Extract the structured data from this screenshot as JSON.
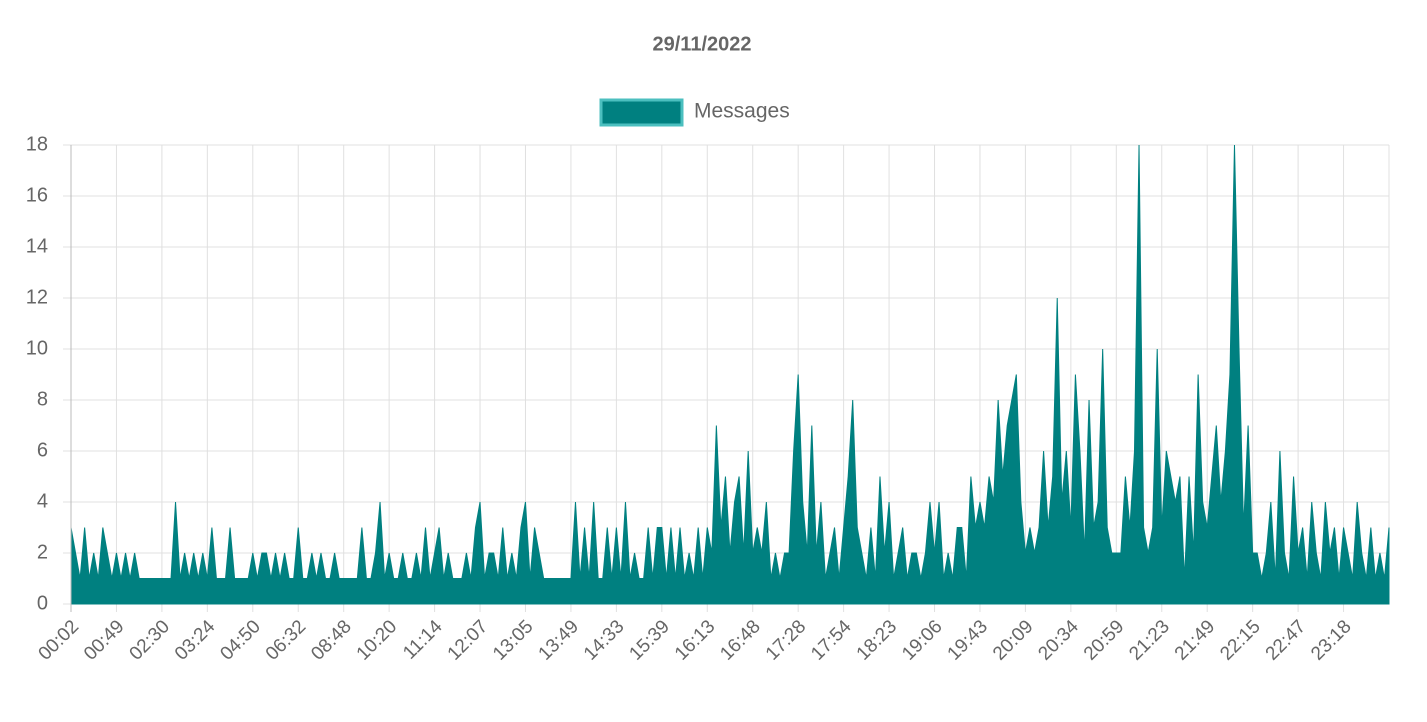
{
  "chart_data": {
    "type": "area",
    "title": "29/11/2022",
    "categories": [
      "00:02",
      null,
      null,
      null,
      null,
      null,
      null,
      null,
      null,
      null,
      "00:49",
      null,
      null,
      null,
      null,
      null,
      null,
      null,
      null,
      null,
      "02:30",
      null,
      null,
      null,
      null,
      null,
      null,
      null,
      null,
      null,
      "03:24",
      null,
      null,
      null,
      null,
      null,
      null,
      null,
      null,
      null,
      "04:50",
      null,
      null,
      null,
      null,
      null,
      null,
      null,
      null,
      null,
      "06:32",
      null,
      null,
      null,
      null,
      null,
      null,
      null,
      null,
      null,
      "08:48",
      null,
      null,
      null,
      null,
      null,
      null,
      null,
      null,
      null,
      "10:20",
      null,
      null,
      null,
      null,
      null,
      null,
      null,
      null,
      null,
      "11:14",
      null,
      null,
      null,
      null,
      null,
      null,
      null,
      null,
      null,
      "12:07",
      null,
      null,
      null,
      null,
      null,
      null,
      null,
      null,
      null,
      "13:05",
      null,
      null,
      null,
      null,
      null,
      null,
      null,
      null,
      null,
      "13:49",
      null,
      null,
      null,
      null,
      null,
      null,
      null,
      null,
      null,
      "14:33",
      null,
      null,
      null,
      null,
      null,
      null,
      null,
      null,
      null,
      "15:39",
      null,
      null,
      null,
      null,
      null,
      null,
      null,
      null,
      null,
      "16:13",
      null,
      null,
      null,
      null,
      null,
      null,
      null,
      null,
      null,
      "16:48",
      null,
      null,
      null,
      null,
      null,
      null,
      null,
      null,
      null,
      "17:28",
      null,
      null,
      null,
      null,
      null,
      null,
      null,
      null,
      null,
      "17:54",
      null,
      null,
      null,
      null,
      null,
      null,
      null,
      null,
      null,
      "18:23",
      null,
      null,
      null,
      null,
      null,
      null,
      null,
      null,
      null,
      "19:06",
      null,
      null,
      null,
      null,
      null,
      null,
      null,
      null,
      null,
      "19:43",
      null,
      null,
      null,
      null,
      null,
      null,
      null,
      null,
      null,
      "20:09",
      null,
      null,
      null,
      null,
      null,
      null,
      null,
      null,
      null,
      "20:34",
      null,
      null,
      null,
      null,
      null,
      null,
      null,
      null,
      null,
      "20:59",
      null,
      null,
      null,
      null,
      null,
      null,
      null,
      null,
      null,
      "21:23",
      null,
      null,
      null,
      null,
      null,
      null,
      null,
      null,
      null,
      "21:49",
      null,
      null,
      null,
      null,
      null,
      null,
      null,
      null,
      null,
      "22:15",
      null,
      null,
      null,
      null,
      null,
      null,
      null,
      null,
      null,
      "22:47",
      null,
      null,
      null,
      null,
      null,
      null,
      null,
      null,
      null,
      "23:18",
      null,
      null,
      null,
      null,
      null,
      null,
      null,
      null,
      null,
      null
    ],
    "series": [
      {
        "name": "Messages",
        "color": "#008080",
        "border_color": "#4bbfbf",
        "values": [
          3,
          2,
          1,
          3,
          1,
          2,
          1,
          3,
          2,
          1,
          2,
          1,
          2,
          1,
          2,
          1,
          1,
          1,
          1,
          1,
          1,
          1,
          1,
          4,
          1,
          2,
          1,
          2,
          1,
          2,
          1,
          3,
          1,
          1,
          1,
          3,
          1,
          1,
          1,
          1,
          2,
          1,
          2,
          2,
          1,
          2,
          1,
          2,
          1,
          1,
          3,
          1,
          1,
          2,
          1,
          2,
          1,
          1,
          2,
          1,
          1,
          1,
          1,
          1,
          3,
          1,
          1,
          2,
          4,
          1,
          2,
          1,
          1,
          2,
          1,
          1,
          2,
          1,
          3,
          1,
          2,
          3,
          1,
          2,
          1,
          1,
          1,
          2,
          1,
          3,
          4,
          1,
          2,
          2,
          1,
          3,
          1,
          2,
          1,
          3,
          4,
          1,
          3,
          2,
          1,
          1,
          1,
          1,
          1,
          1,
          1,
          4,
          1,
          3,
          1,
          4,
          1,
          1,
          3,
          1,
          3,
          1,
          4,
          1,
          2,
          1,
          1,
          3,
          1,
          3,
          3,
          1,
          3,
          1,
          3,
          1,
          2,
          1,
          3,
          1,
          3,
          2,
          7,
          3,
          5,
          2,
          4,
          5,
          2,
          6,
          2,
          3,
          2,
          4,
          1,
          2,
          1,
          2,
          2,
          6,
          9,
          4,
          2,
          7,
          2,
          4,
          1,
          2,
          3,
          1,
          3,
          5,
          8,
          3,
          2,
          1,
          3,
          1,
          5,
          2,
          4,
          1,
          2,
          3,
          1,
          2,
          2,
          1,
          2,
          4,
          2,
          4,
          1,
          2,
          1,
          3,
          3,
          1,
          5,
          3,
          4,
          3,
          5,
          4,
          8,
          5,
          7,
          8,
          9,
          4,
          2,
          3,
          2,
          3,
          6,
          3,
          5,
          12,
          4,
          6,
          3,
          9,
          6,
          2,
          8,
          3,
          4,
          10,
          3,
          2,
          2,
          2,
          5,
          3,
          6,
          18,
          3,
          2,
          3,
          10,
          3,
          6,
          5,
          4,
          5,
          1,
          5,
          2,
          9,
          4,
          3,
          5,
          7,
          4,
          6,
          9,
          18,
          10,
          3,
          7,
          2,
          2,
          1,
          2,
          4,
          1,
          6,
          2,
          1,
          5,
          2,
          3,
          1,
          4,
          2,
          1,
          4,
          2,
          3,
          1,
          3,
          2,
          1,
          4,
          2,
          1,
          3,
          1,
          2,
          1,
          3
        ]
      }
    ],
    "ylim": [
      0,
      18
    ],
    "yticks": [
      0,
      2,
      4,
      6,
      8,
      10,
      12,
      14,
      16,
      18
    ],
    "grid": true,
    "legend": "top"
  }
}
